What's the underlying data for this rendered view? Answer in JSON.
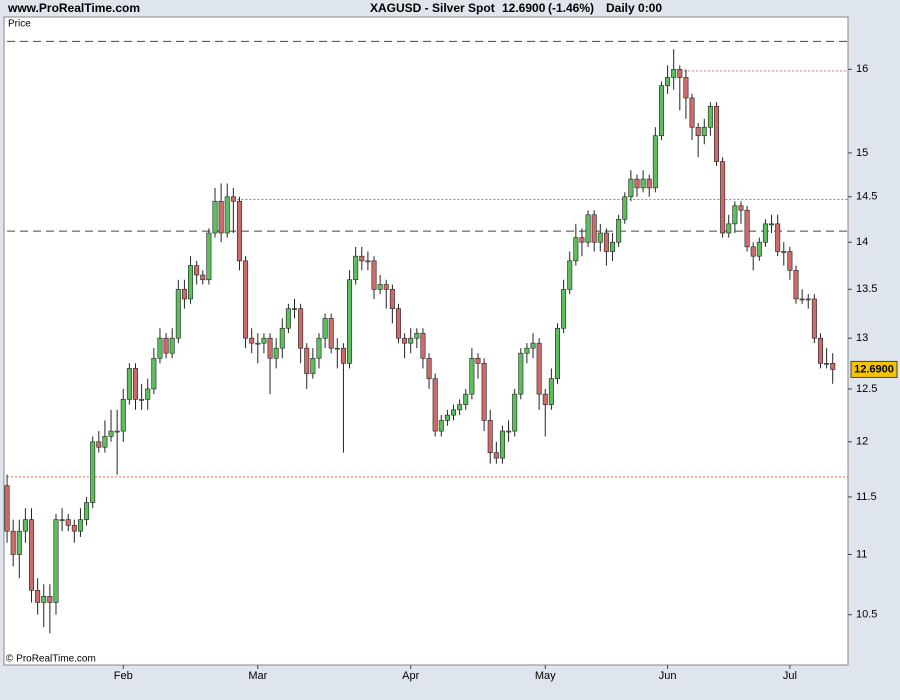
{
  "header": {
    "site": "www.ProRealTime.com",
    "instrument": "XAGUSD - Silver Spot",
    "change": "(-1.46%)",
    "period": "Daily  0:00"
  },
  "chart_data": {
    "type": "candlestick",
    "panel_label": "Price",
    "copyright": "© ProRealTime.com",
    "log_scale": true,
    "up_color": "#5cbf5c",
    "down_color": "#cd6b6b",
    "ylim": [
      10.1,
      16.66
    ],
    "yticks": [
      10.5,
      11,
      11.5,
      12,
      12.5,
      13,
      13.5,
      14,
      14.5,
      15,
      16
    ],
    "last_price": {
      "value": 12.69,
      "label": "12.6900"
    },
    "hlines": [
      {
        "value": 16.35,
        "style": "dashed",
        "color": "#444444",
        "start_index": 0
      },
      {
        "value": 14.12,
        "style": "dashed",
        "color": "#444444",
        "start_index": 0
      },
      {
        "value": 15.98,
        "style": "dotted",
        "color": "#e07050",
        "start_index": 110
      },
      {
        "value": 14.47,
        "style": "dotted",
        "color": "#e07050",
        "start_index": 37
      },
      {
        "value": 11.68,
        "style": "dotted",
        "color": "#e07050",
        "start_index": 0
      }
    ],
    "categories": [
      null,
      null,
      null,
      null,
      null,
      null,
      null,
      null,
      null,
      null,
      null,
      null,
      null,
      null,
      null,
      null,
      null,
      null,
      null,
      "Feb",
      null,
      null,
      null,
      null,
      null,
      null,
      null,
      null,
      null,
      null,
      null,
      null,
      null,
      null,
      null,
      null,
      null,
      null,
      null,
      null,
      null,
      "Mar",
      null,
      null,
      null,
      null,
      null,
      null,
      null,
      null,
      null,
      null,
      null,
      null,
      null,
      null,
      null,
      null,
      null,
      null,
      null,
      null,
      null,
      null,
      null,
      null,
      "Apr",
      null,
      null,
      null,
      null,
      null,
      null,
      null,
      null,
      null,
      null,
      null,
      null,
      null,
      null,
      null,
      null,
      null,
      null,
      null,
      null,
      null,
      "May",
      null,
      null,
      null,
      null,
      null,
      null,
      null,
      null,
      null,
      null,
      null,
      null,
      null,
      null,
      null,
      null,
      null,
      null,
      null,
      "Jun",
      null,
      null,
      null,
      null,
      null,
      null,
      null,
      null,
      null,
      null,
      null,
      null,
      null,
      null,
      null,
      null,
      null,
      null,
      null,
      "Jul",
      null,
      null,
      null,
      null,
      null,
      null,
      null
    ],
    "open": [
      11.6,
      11.2,
      11.0,
      11.2,
      11.3,
      10.7,
      10.6,
      10.65,
      10.6,
      11.3,
      11.3,
      11.25,
      11.2,
      11.3,
      11.45,
      12.0,
      11.95,
      12.05,
      12.1,
      12.1,
      12.4,
      12.7,
      12.4,
      12.4,
      12.5,
      12.8,
      13.0,
      12.85,
      13.0,
      13.5,
      13.4,
      13.75,
      13.65,
      13.6,
      14.1,
      14.45,
      14.1,
      14.5,
      14.45,
      13.8,
      13.0,
      12.95,
      12.95,
      13.0,
      12.8,
      12.9,
      13.1,
      13.3,
      13.3,
      12.9,
      12.65,
      12.8,
      13.0,
      13.2,
      12.9,
      12.9,
      12.75,
      13.6,
      13.85,
      13.8,
      13.8,
      13.5,
      13.55,
      13.5,
      13.3,
      13.0,
      12.95,
      13.0,
      13.05,
      12.8,
      12.6,
      12.1,
      12.2,
      12.25,
      12.3,
      12.35,
      12.45,
      12.8,
      12.75,
      12.2,
      11.9,
      11.85,
      12.1,
      12.1,
      12.45,
      12.85,
      12.9,
      12.95,
      12.45,
      12.35,
      12.6,
      13.1,
      13.5,
      13.8,
      14.05,
      14.0,
      14.3,
      14.0,
      14.1,
      13.9,
      14.0,
      14.25,
      14.5,
      14.7,
      14.6,
      14.7,
      14.6,
      15.2,
      15.8,
      15.9,
      16.0,
      15.9,
      15.65,
      15.3,
      15.2,
      15.3,
      15.55,
      14.9,
      14.1,
      14.2,
      14.4,
      14.35,
      13.95,
      13.85,
      14.0,
      14.2,
      14.2,
      13.9,
      13.9,
      13.7,
      13.4,
      13.4,
      13.4,
      13.0,
      12.75,
      12.75
    ],
    "high": [
      11.7,
      11.3,
      11.3,
      11.4,
      11.4,
      10.8,
      10.75,
      10.75,
      11.35,
      11.4,
      11.35,
      11.3,
      11.4,
      11.5,
      12.05,
      12.1,
      12.2,
      12.3,
      12.3,
      12.5,
      12.75,
      12.75,
      12.55,
      12.6,
      12.9,
      13.1,
      13.05,
      13.1,
      13.6,
      13.6,
      13.85,
      13.8,
      13.7,
      14.15,
      14.6,
      14.65,
      14.65,
      14.6,
      14.5,
      13.85,
      13.1,
      13.05,
      13.05,
      13.05,
      13.0,
      13.2,
      13.35,
      13.4,
      13.35,
      12.95,
      12.9,
      13.05,
      13.25,
      13.25,
      13.0,
      12.95,
      13.7,
      13.95,
      13.95,
      13.9,
      13.85,
      13.65,
      13.6,
      13.55,
      13.35,
      13.05,
      13.1,
      13.1,
      13.1,
      12.85,
      12.65,
      12.25,
      12.3,
      12.35,
      12.4,
      12.5,
      12.9,
      12.85,
      12.8,
      12.3,
      12.0,
      12.15,
      12.2,
      12.5,
      12.9,
      12.95,
      13.05,
      13.0,
      12.5,
      12.7,
      13.15,
      13.6,
      13.9,
      14.2,
      14.15,
      14.35,
      14.35,
      14.2,
      14.15,
      14.1,
      14.3,
      14.55,
      14.8,
      14.75,
      14.8,
      14.75,
      15.3,
      15.85,
      16.05,
      16.25,
      16.05,
      16.0,
      15.7,
      15.35,
      15.4,
      15.6,
      15.6,
      14.95,
      14.3,
      14.45,
      14.45,
      14.4,
      14.0,
      14.05,
      14.25,
      14.3,
      14.3,
      14.0,
      13.95,
      13.75,
      13.5,
      13.45,
      13.45,
      13.05,
      12.9,
      12.85
    ],
    "low": [
      11.1,
      10.9,
      10.8,
      11.1,
      10.6,
      10.5,
      10.4,
      10.35,
      10.5,
      11.2,
      11.2,
      11.1,
      11.15,
      11.25,
      11.4,
      11.9,
      11.9,
      12.0,
      11.7,
      12.0,
      12.35,
      12.3,
      12.3,
      12.3,
      12.45,
      12.75,
      12.8,
      12.8,
      12.95,
      13.3,
      13.35,
      13.55,
      13.55,
      13.55,
      14.05,
      14.0,
      14.05,
      14.1,
      13.7,
      12.9,
      12.85,
      12.75,
      12.85,
      12.45,
      12.7,
      12.8,
      13.05,
      13.2,
      12.75,
      12.5,
      12.6,
      12.7,
      12.9,
      12.85,
      12.7,
      11.9,
      12.7,
      13.55,
      13.7,
      13.7,
      13.4,
      13.45,
      13.3,
      13.15,
      12.95,
      12.8,
      12.85,
      12.9,
      12.7,
      12.5,
      12.05,
      12.05,
      12.15,
      12.2,
      12.25,
      12.3,
      12.4,
      12.6,
      12.1,
      11.8,
      11.8,
      11.8,
      12.0,
      12.05,
      12.4,
      12.75,
      12.8,
      12.3,
      12.05,
      12.3,
      12.55,
      13.05,
      13.45,
      13.75,
      13.85,
      13.95,
      13.9,
      13.9,
      13.75,
      13.8,
      13.95,
      14.2,
      14.45,
      14.5,
      14.55,
      14.5,
      14.55,
      15.15,
      15.7,
      15.75,
      15.5,
      15.4,
      15.15,
      14.95,
      15.1,
      15.2,
      14.85,
      14.05,
      14.05,
      14.1,
      14.2,
      13.9,
      13.7,
      13.8,
      13.95,
      14.1,
      13.85,
      13.75,
      13.6,
      13.35,
      13.35,
      13.3,
      12.95,
      12.7,
      12.7,
      12.55
    ],
    "close": [
      11.2,
      11.0,
      11.2,
      11.3,
      10.7,
      10.6,
      10.65,
      10.6,
      11.3,
      11.3,
      11.25,
      11.2,
      11.3,
      11.45,
      12.0,
      11.95,
      12.05,
      12.1,
      12.1,
      12.4,
      12.7,
      12.4,
      12.4,
      12.5,
      12.8,
      13.0,
      12.85,
      13.0,
      13.5,
      13.4,
      13.75,
      13.65,
      13.6,
      14.1,
      14.45,
      14.1,
      14.5,
      14.45,
      13.8,
      13.0,
      12.95,
      12.95,
      13.0,
      12.8,
      12.9,
      13.1,
      13.3,
      13.3,
      12.9,
      12.65,
      12.8,
      13.0,
      13.2,
      12.9,
      12.9,
      12.75,
      13.6,
      13.85,
      13.8,
      13.8,
      13.5,
      13.55,
      13.5,
      13.3,
      13.0,
      12.95,
      13.0,
      13.05,
      12.8,
      12.6,
      12.1,
      12.2,
      12.25,
      12.3,
      12.35,
      12.45,
      12.8,
      12.75,
      12.2,
      11.9,
      11.85,
      12.1,
      12.1,
      12.45,
      12.85,
      12.9,
      12.95,
      12.45,
      12.35,
      12.6,
      13.1,
      13.5,
      13.8,
      14.05,
      14.0,
      14.3,
      14.0,
      14.1,
      13.9,
      14.0,
      14.25,
      14.5,
      14.7,
      14.6,
      14.7,
      14.6,
      15.2,
      15.8,
      15.9,
      16.0,
      15.9,
      15.65,
      15.3,
      15.2,
      15.3,
      15.55,
      14.9,
      14.1,
      14.2,
      14.4,
      14.35,
      13.95,
      13.85,
      14.0,
      14.2,
      14.2,
      13.9,
      13.9,
      13.7,
      13.4,
      13.4,
      13.4,
      13.0,
      12.75,
      12.75,
      12.69
    ]
  }
}
